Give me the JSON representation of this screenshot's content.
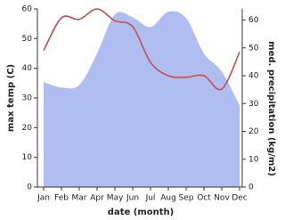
{
  "chart_data": {
    "type": "line",
    "xlabel": "date (month)",
    "ylabel": "max temp (C)",
    "y2label": "med. precipitation (kg/m2)",
    "categories": [
      "Jan",
      "Feb",
      "Mar",
      "Apr",
      "May",
      "Jun",
      "Jul",
      "Aug",
      "Sep",
      "Oct",
      "Nov",
      "Dec"
    ],
    "series": [
      {
        "color": "#b0bdf0",
        "area": true,
        "axis": "y2",
        "values": [
          37.7,
          35.8,
          36.7,
          48,
          62,
          61,
          57.5,
          63,
          60.7,
          48,
          41.5,
          29.4
        ]
      },
      {
        "color": "#c0504d",
        "values": [
          46,
          57,
          56.5,
          60,
          56,
          54,
          42,
          37.5,
          37,
          37.5,
          33,
          45.5
        ]
      }
    ],
    "ylim": [
      0,
      60
    ],
    "yticks": [
      0,
      10,
      20,
      30,
      40,
      50,
      60
    ],
    "y2lim": [
      0,
      64
    ],
    "y2ticks": [
      0,
      10,
      20,
      30,
      40,
      50,
      60
    ]
  }
}
